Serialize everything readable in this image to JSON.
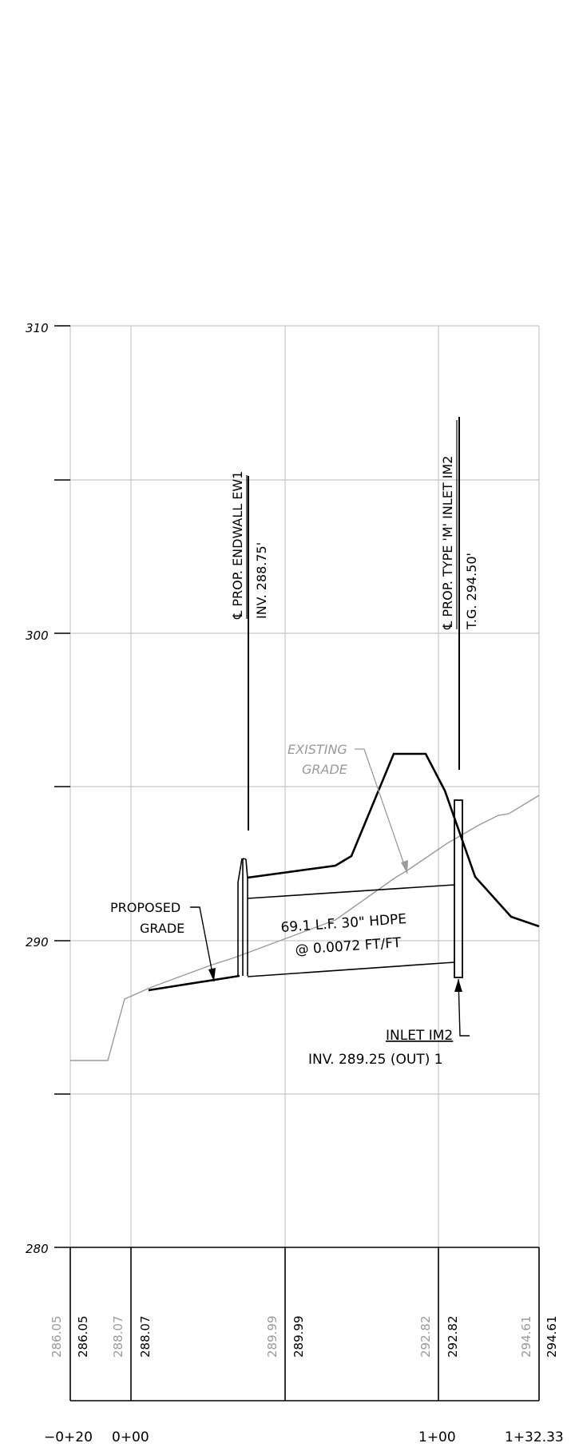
{
  "y_axis": {
    "labels": [
      "310",
      "300",
      "290",
      "280"
    ]
  },
  "endwall": {
    "title": "℄ PROP. ENDWALL EW1",
    "inv": "INV. 288.75'"
  },
  "inlet_top": {
    "title": "℄ PROP. TYPE 'M' INLET IM2",
    "tg": "T.G. 294.50'"
  },
  "existing_grade": {
    "line1": "EXISTING",
    "line2": "GRADE"
  },
  "proposed_grade": {
    "line1": "PROPOSED",
    "line2": "GRADE"
  },
  "pipe": {
    "line1": "69.1 L.F. 30\" HDPE",
    "line2": "@ 0.0072 FT/FT"
  },
  "inlet_note": {
    "title": "INLET IM2",
    "inv": "INV. 289.25 (OUT) 1"
  },
  "elevations": [
    {
      "existing": "286.05",
      "proposed": "286.05"
    },
    {
      "existing": "288.07",
      "proposed": "288.07"
    },
    {
      "existing": "289.99",
      "proposed": "289.99"
    },
    {
      "existing": "292.82",
      "proposed": "292.82"
    },
    {
      "existing": "294.61",
      "proposed": "294.61"
    }
  ],
  "stations": [
    "−0+20",
    "0+00",
    "1+00",
    "1+32.33"
  ],
  "colors": {
    "existing": "#9a9a9a",
    "proposed": "#000000",
    "grid": "#c8c8c8"
  }
}
